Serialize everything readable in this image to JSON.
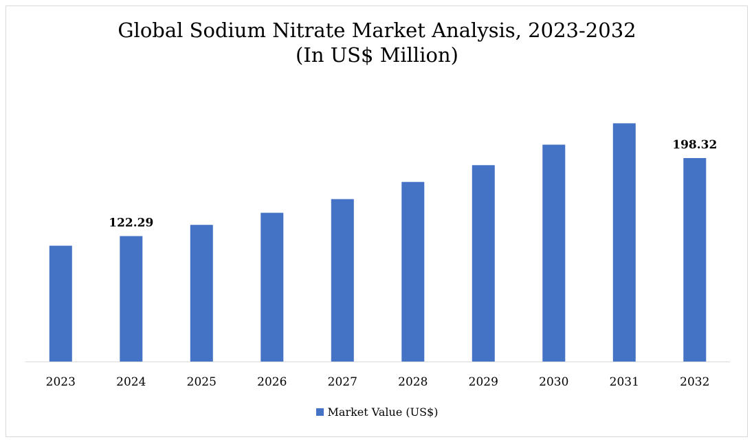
{
  "chart_data": {
    "type": "bar",
    "title": "Global Sodium Nitrate Market Analysis, 2023-2032",
    "subtitle": "(In US$ Million)",
    "categories": [
      "2023",
      "2024",
      "2025",
      "2026",
      "2027",
      "2028",
      "2029",
      "2030",
      "2031",
      "2032"
    ],
    "series": [
      {
        "name": "Market Value (US$)",
        "color": "#4472c4",
        "values": [
          112.9,
          122.29,
          133.2,
          145.0,
          158.3,
          175.1,
          191.4,
          211.4,
          232.2,
          198.32
        ]
      }
    ],
    "data_labels": [
      {
        "category": "2024",
        "text": "122.29"
      },
      {
        "category": "2032",
        "text": "198.32"
      }
    ],
    "legend": "bottom-center",
    "grid": false
  }
}
